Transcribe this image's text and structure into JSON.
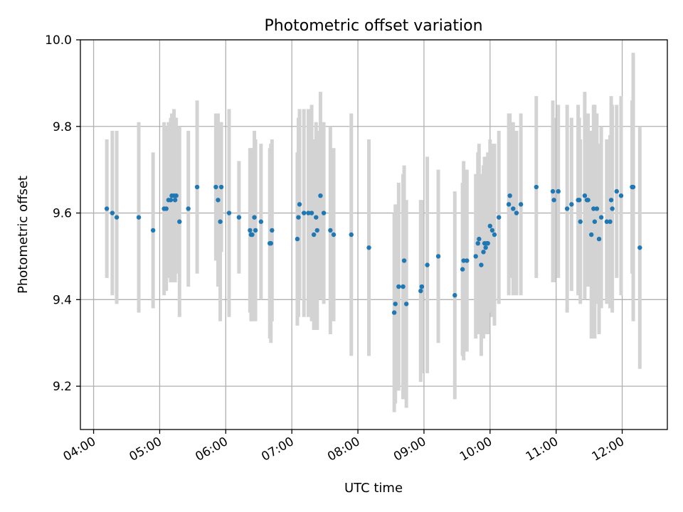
{
  "chart_data": {
    "type": "scatter",
    "title": "Photometric offset variation",
    "xlabel": "UTC time",
    "ylabel": "Photometric offset",
    "xlim": [
      "03:48",
      "12:41"
    ],
    "ylim": [
      9.1,
      10.0
    ],
    "x_ticks": [
      "04:00",
      "05:00",
      "06:00",
      "07:00",
      "08:00",
      "09:00",
      "10:00",
      "11:00",
      "12:00"
    ],
    "y_ticks": [
      9.2,
      9.4,
      9.6,
      9.8,
      10.0
    ],
    "y_tick_labels": [
      "9.2",
      "9.4",
      "9.6",
      "9.8",
      "10.0"
    ],
    "grid": true,
    "colors": {
      "points": "#1f77b4",
      "errorbars": "#d3d3d3"
    },
    "series": [
      {
        "points": [
          {
            "x": "04:12",
            "y": 9.61,
            "err": 0.16
          },
          {
            "x": "04:17",
            "y": 9.6,
            "err": 0.19
          },
          {
            "x": "04:21",
            "y": 9.59,
            "err": 0.2
          },
          {
            "x": "04:41",
            "y": 9.59,
            "err": 0.22
          },
          {
            "x": "04:54",
            "y": 9.56,
            "err": 0.18
          },
          {
            "x": "05:04",
            "y": 9.61,
            "err": 0.2
          },
          {
            "x": "05:06",
            "y": 9.61,
            "err": 0.19
          },
          {
            "x": "05:08",
            "y": 9.63,
            "err": 0.18
          },
          {
            "x": "05:10",
            "y": 9.63,
            "err": 0.19
          },
          {
            "x": "05:11",
            "y": 9.64,
            "err": 0.19
          },
          {
            "x": "05:13",
            "y": 9.64,
            "err": 0.2
          },
          {
            "x": "05:14",
            "y": 9.63,
            "err": 0.19
          },
          {
            "x": "05:15",
            "y": 9.64,
            "err": 0.18
          },
          {
            "x": "05:18",
            "y": 9.58,
            "err": 0.22
          },
          {
            "x": "05:26",
            "y": 9.61,
            "err": 0.18
          },
          {
            "x": "05:34",
            "y": 9.66,
            "err": 0.2
          },
          {
            "x": "05:51",
            "y": 9.66,
            "err": 0.17
          },
          {
            "x": "05:53",
            "y": 9.63,
            "err": 0.2
          },
          {
            "x": "05:55",
            "y": 9.58,
            "err": 0.23
          },
          {
            "x": "05:56",
            "y": 9.66,
            "err": 0.15
          },
          {
            "x": "06:03",
            "y": 9.6,
            "err": 0.24
          },
          {
            "x": "06:12",
            "y": 9.59,
            "err": 0.13
          },
          {
            "x": "06:22",
            "y": 9.56,
            "err": 0.19
          },
          {
            "x": "06:23",
            "y": 9.55,
            "err": 0.2
          },
          {
            "x": "06:24",
            "y": 9.55,
            "err": 0.2
          },
          {
            "x": "06:26",
            "y": 9.59,
            "err": 0.2
          },
          {
            "x": "06:27",
            "y": 9.56,
            "err": 0.21
          },
          {
            "x": "06:32",
            "y": 9.58,
            "err": 0.18
          },
          {
            "x": "06:40",
            "y": 9.53,
            "err": 0.22
          },
          {
            "x": "06:41",
            "y": 9.53,
            "err": 0.23
          },
          {
            "x": "06:42",
            "y": 9.56,
            "err": 0.21
          },
          {
            "x": "07:05",
            "y": 9.54,
            "err": 0.2
          },
          {
            "x": "07:06",
            "y": 9.59,
            "err": 0.23
          },
          {
            "x": "07:07",
            "y": 9.62,
            "err": 0.22
          },
          {
            "x": "07:11",
            "y": 9.6,
            "err": 0.24
          },
          {
            "x": "07:15",
            "y": 9.6,
            "err": 0.24
          },
          {
            "x": "07:18",
            "y": 9.6,
            "err": 0.25
          },
          {
            "x": "07:20",
            "y": 9.55,
            "err": 0.22
          },
          {
            "x": "07:22",
            "y": 9.59,
            "err": 0.22
          },
          {
            "x": "07:23",
            "y": 9.56,
            "err": 0.23
          },
          {
            "x": "07:26",
            "y": 9.64,
            "err": 0.24
          },
          {
            "x": "07:29",
            "y": 9.6,
            "err": 0.21
          },
          {
            "x": "07:35",
            "y": 9.56,
            "err": 0.24
          },
          {
            "x": "07:38",
            "y": 9.55,
            "err": 0.2
          },
          {
            "x": "07:54",
            "y": 9.55,
            "err": 0.28
          },
          {
            "x": "08:10",
            "y": 9.52,
            "err": 0.25
          },
          {
            "x": "08:33",
            "y": 9.37,
            "err": 0.23
          },
          {
            "x": "08:34",
            "y": 9.39,
            "err": 0.23
          },
          {
            "x": "08:37",
            "y": 9.43,
            "err": 0.24
          },
          {
            "x": "08:41",
            "y": 9.43,
            "err": 0.26
          },
          {
            "x": "08:42",
            "y": 9.49,
            "err": 0.22
          },
          {
            "x": "08:44",
            "y": 9.39,
            "err": 0.24
          },
          {
            "x": "08:57",
            "y": 9.42,
            "err": 0.21
          },
          {
            "x": "08:58",
            "y": 9.43,
            "err": 0.2
          },
          {
            "x": "09:03",
            "y": 9.48,
            "err": 0.25
          },
          {
            "x": "09:13",
            "y": 9.5,
            "err": 0.2
          },
          {
            "x": "09:28",
            "y": 9.41,
            "err": 0.24
          },
          {
            "x": "09:35",
            "y": 9.47,
            "err": 0.2
          },
          {
            "x": "09:36",
            "y": 9.49,
            "err": 0.23
          },
          {
            "x": "09:39",
            "y": 9.49,
            "err": 0.21
          },
          {
            "x": "09:47",
            "y": 9.5,
            "err": 0.19
          },
          {
            "x": "09:49",
            "y": 9.53,
            "err": 0.21
          },
          {
            "x": "09:50",
            "y": 9.54,
            "err": 0.22
          },
          {
            "x": "09:52",
            "y": 9.48,
            "err": 0.21
          },
          {
            "x": "09:54",
            "y": 9.51,
            "err": 0.2
          },
          {
            "x": "09:55",
            "y": 9.53,
            "err": 0.2
          },
          {
            "x": "09:56",
            "y": 9.52,
            "err": 0.2
          },
          {
            "x": "09:57",
            "y": 9.53,
            "err": 0.2
          },
          {
            "x": "09:58",
            "y": 9.53,
            "err": 0.21
          },
          {
            "x": "10:00",
            "y": 9.57,
            "err": 0.2
          },
          {
            "x": "10:02",
            "y": 9.56,
            "err": 0.2
          },
          {
            "x": "10:04",
            "y": 9.55,
            "err": 0.21
          },
          {
            "x": "10:08",
            "y": 9.59,
            "err": 0.2
          },
          {
            "x": "10:17",
            "y": 9.62,
            "err": 0.21
          },
          {
            "x": "10:18",
            "y": 9.64,
            "err": 0.19
          },
          {
            "x": "10:21",
            "y": 9.61,
            "err": 0.2
          },
          {
            "x": "10:24",
            "y": 9.6,
            "err": 0.19
          },
          {
            "x": "10:28",
            "y": 9.62,
            "err": 0.21
          },
          {
            "x": "10:42",
            "y": 9.66,
            "err": 0.21
          },
          {
            "x": "10:57",
            "y": 9.65,
            "err": 0.21
          },
          {
            "x": "10:58",
            "y": 9.63,
            "err": 0.19
          },
          {
            "x": "11:02",
            "y": 9.65,
            "err": 0.2
          },
          {
            "x": "11:10",
            "y": 9.61,
            "err": 0.24
          },
          {
            "x": "11:14",
            "y": 9.62,
            "err": 0.2
          },
          {
            "x": "11:20",
            "y": 9.63,
            "err": 0.22
          },
          {
            "x": "11:21",
            "y": 9.63,
            "err": 0.19
          },
          {
            "x": "11:22",
            "y": 9.58,
            "err": 0.19
          },
          {
            "x": "11:26",
            "y": 9.64,
            "err": 0.24
          },
          {
            "x": "11:28",
            "y": 9.63,
            "err": 0.19
          },
          {
            "x": "11:29",
            "y": 9.63,
            "err": 0.2
          },
          {
            "x": "11:32",
            "y": 9.55,
            "err": 0.24
          },
          {
            "x": "11:34",
            "y": 9.61,
            "err": 0.24
          },
          {
            "x": "11:35",
            "y": 9.58,
            "err": 0.27
          },
          {
            "x": "11:37",
            "y": 9.61,
            "err": 0.22
          },
          {
            "x": "11:39",
            "y": 9.54,
            "err": 0.22
          },
          {
            "x": "11:41",
            "y": 9.59,
            "err": 0.21
          },
          {
            "x": "11:46",
            "y": 9.58,
            "err": 0.19
          },
          {
            "x": "11:49",
            "y": 9.58,
            "err": 0.2
          },
          {
            "x": "11:50",
            "y": 9.63,
            "err": 0.24
          },
          {
            "x": "11:51",
            "y": 9.61,
            "err": 0.24
          },
          {
            "x": "11:55",
            "y": 9.65,
            "err": 0.2
          },
          {
            "x": "11:59",
            "y": 9.64,
            "err": 0.23
          },
          {
            "x": "12:09",
            "y": 9.66,
            "err": 0.2
          },
          {
            "x": "12:10",
            "y": 9.66,
            "err": 0.31
          },
          {
            "x": "12:16",
            "y": 9.52,
            "err": 0.28
          }
        ]
      }
    ]
  }
}
